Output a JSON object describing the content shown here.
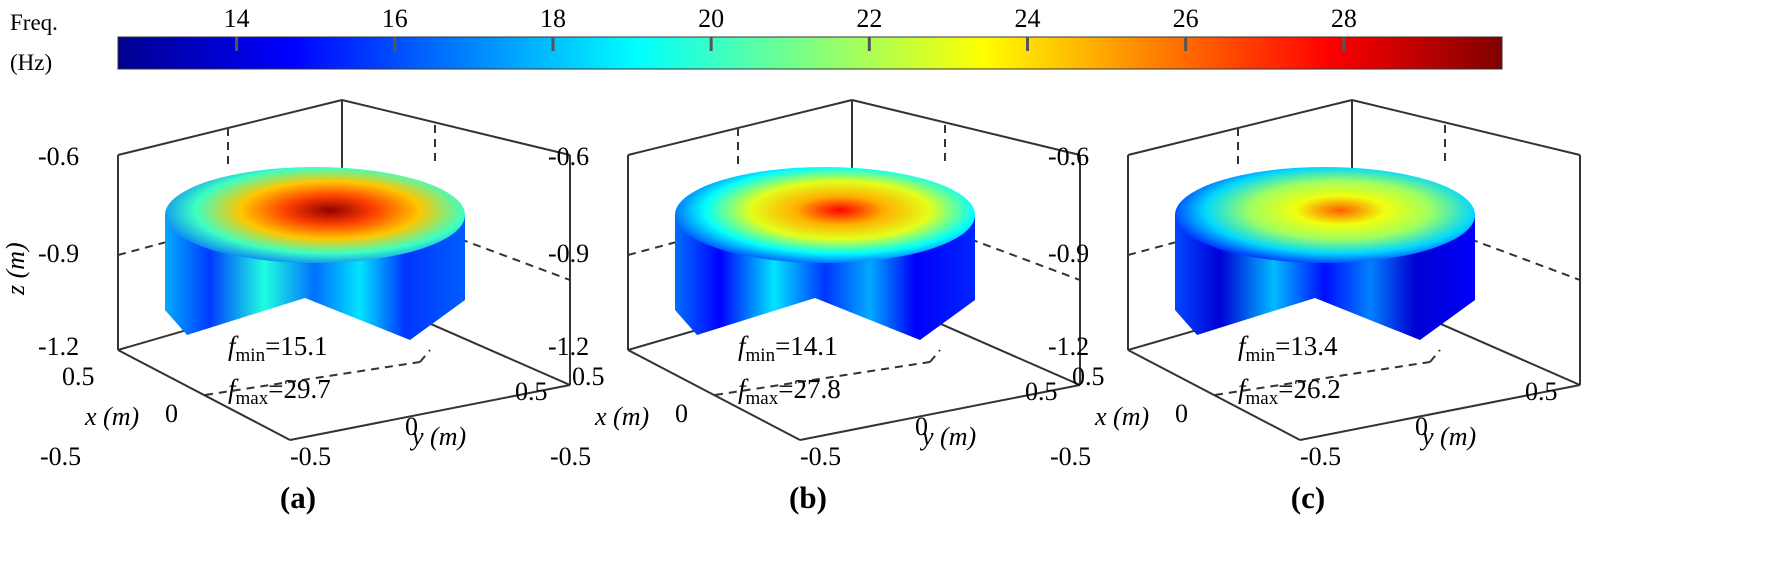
{
  "chart_data": {
    "type": "heatmap",
    "colorbar": {
      "title_line1": "Freq.",
      "title_line2": "(Hz)",
      "range": [
        12.5,
        30.0
      ],
      "ticks": [
        14,
        16,
        18,
        20,
        22,
        24,
        26,
        28
      ],
      "tick_labels": [
        "14",
        "16",
        "18",
        "20",
        "22",
        "24",
        "26",
        "28"
      ],
      "colormap": "jet"
    },
    "axes": {
      "z_label": "z (m)",
      "x_label": "x (m)",
      "y_label": "y (m)",
      "z_ticks": [
        "-0.6",
        "-0.9",
        "-1.2"
      ],
      "x_ticks": [
        "0.5",
        "0",
        "-0.5"
      ],
      "y_ticks": [
        "-0.5",
        "0",
        "0.5"
      ],
      "z_range": [
        -1.2,
        -0.6
      ],
      "x_range": [
        -0.5,
        0.5
      ],
      "y_range": [
        -0.5,
        0.5
      ]
    },
    "panels": [
      {
        "label": "(a)",
        "f_min": 15.1,
        "f_max": 29.7,
        "f_min_text": "=15.1",
        "f_max_text": "=29.7"
      },
      {
        "label": "(b)",
        "f_min": 14.1,
        "f_max": 27.8,
        "f_min_text": "=14.1",
        "f_max_text": "=27.8"
      },
      {
        "label": "(c)",
        "f_min": 13.4,
        "f_max": 26.2,
        "f_min_text": "=13.4",
        "f_max_text": "=26.2"
      }
    ],
    "annotation_symbol": "f",
    "annotation_sub_min": "min",
    "annotation_sub_max": "max"
  }
}
